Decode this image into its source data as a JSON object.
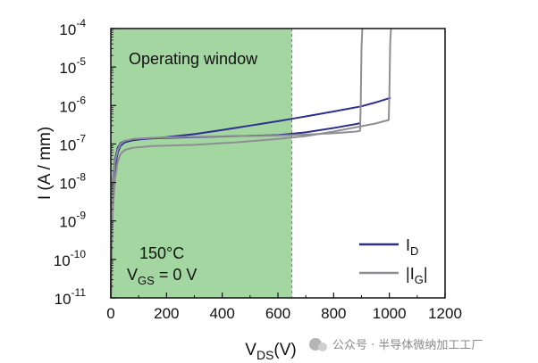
{
  "chart_data": {
    "type": "line",
    "title": "",
    "xlabel": {
      "main": "V",
      "sub": "DS",
      "tail": "(V)"
    },
    "ylabel": "I (A / mm)",
    "xlim": [
      0,
      1200
    ],
    "ylim": [
      1e-11,
      0.0001
    ],
    "yscale": "log",
    "xticks": [
      "0",
      "200",
      "400",
      "600",
      "800",
      "1000",
      "1200"
    ],
    "xtick_values": [
      0,
      200,
      400,
      600,
      800,
      1000,
      1200
    ],
    "yticks": [
      {
        "base": "10",
        "exp": "-11",
        "value": 1e-11
      },
      {
        "base": "10",
        "exp": "-10",
        "value": 1e-10
      },
      {
        "base": "10",
        "exp": "-9",
        "value": 1e-09
      },
      {
        "base": "10",
        "exp": "-8",
        "value": 1e-08
      },
      {
        "base": "10",
        "exp": "-7",
        "value": 1e-07
      },
      {
        "base": "10",
        "exp": "-6",
        "value": 1e-06
      },
      {
        "base": "10",
        "exp": "-5",
        "value": 1e-05
      },
      {
        "base": "10",
        "exp": "-4",
        "value": 0.0001
      }
    ],
    "shaded_region": {
      "x0": 0,
      "x1": 650,
      "label": "Operating window",
      "color": "#a3d6a0"
    },
    "annotations": {
      "temperature": "150°C",
      "vgs": {
        "main": "V",
        "sub": "GS",
        "tail": " = 0 V"
      }
    },
    "series": [
      {
        "name": "I_D-1",
        "legend": {
          "main": "I",
          "sub": "D",
          "pre": "",
          "post": ""
        },
        "color": "#2e2f8f",
        "x": [
          0,
          3,
          8,
          15,
          25,
          35,
          50,
          80,
          120,
          200,
          300,
          400,
          500,
          600,
          650,
          700,
          800,
          900,
          950,
          1000,
          1005
        ],
        "y": [
          1e-11,
          2e-10,
          5e-09,
          2.5e-08,
          6e-08,
          9e-08,
          1.1e-07,
          1.25e-07,
          1.35e-07,
          1.5e-07,
          1.8e-07,
          2.3e-07,
          3e-07,
          3.9e-07,
          4.5e-07,
          5.2e-07,
          7e-07,
          9.5e-07,
          1.2e-06,
          1.55e-06,
          1.6e-06
        ]
      },
      {
        "name": "I_D-2",
        "legend": null,
        "color": "#2e2f8f",
        "x": [
          0,
          3,
          8,
          15,
          25,
          35,
          50,
          80,
          150,
          300,
          450,
          600,
          700,
          800,
          880,
          895
        ],
        "y": [
          1e-11,
          1e-09,
          1.2e-08,
          4e-08,
          8e-08,
          1.05e-07,
          1.2e-07,
          1.3e-07,
          1.4e-07,
          1.5e-07,
          1.6e-07,
          1.7e-07,
          2e-07,
          2.6e-07,
          3.3e-07,
          3.5e-07
        ]
      },
      {
        "name": "I_G-1",
        "legend": {
          "main": "I",
          "sub": "G",
          "pre": "|",
          "post": "|"
        },
        "color": "#8e8e93",
        "x": [
          0,
          3,
          8,
          15,
          25,
          35,
          50,
          80,
          150,
          300,
          450,
          600,
          700,
          800,
          880,
          895,
          897,
          900,
          903
        ],
        "y": [
          1e-11,
          1e-09,
          1e-08,
          3.5e-08,
          7e-08,
          1e-07,
          1.2e-07,
          1.35e-07,
          1.45e-07,
          1.55e-07,
          1.6e-07,
          1.65e-07,
          1.75e-07,
          1.9e-07,
          2.1e-07,
          2.2e-07,
          1e-06,
          3e-05,
          0.0001
        ]
      },
      {
        "name": "I_G-2",
        "legend": null,
        "color": "#8e8e93",
        "x": [
          0,
          3,
          8,
          15,
          25,
          35,
          50,
          80,
          150,
          300,
          450,
          600,
          700,
          800,
          900,
          950,
          998,
          1000,
          1003,
          1006
        ],
        "y": [
          1e-11,
          3e-10,
          2.5e-09,
          1.2e-08,
          3.5e-08,
          5.5e-08,
          7e-08,
          8e-08,
          8.8e-08,
          9.5e-08,
          1.1e-07,
          1.35e-07,
          1.6e-07,
          2.1e-07,
          2.9e-07,
          3.4e-07,
          4.2e-07,
          2e-06,
          4e-05,
          0.0001
        ]
      }
    ]
  },
  "watermark": "公众号 · 半导体微纳加工工厂"
}
